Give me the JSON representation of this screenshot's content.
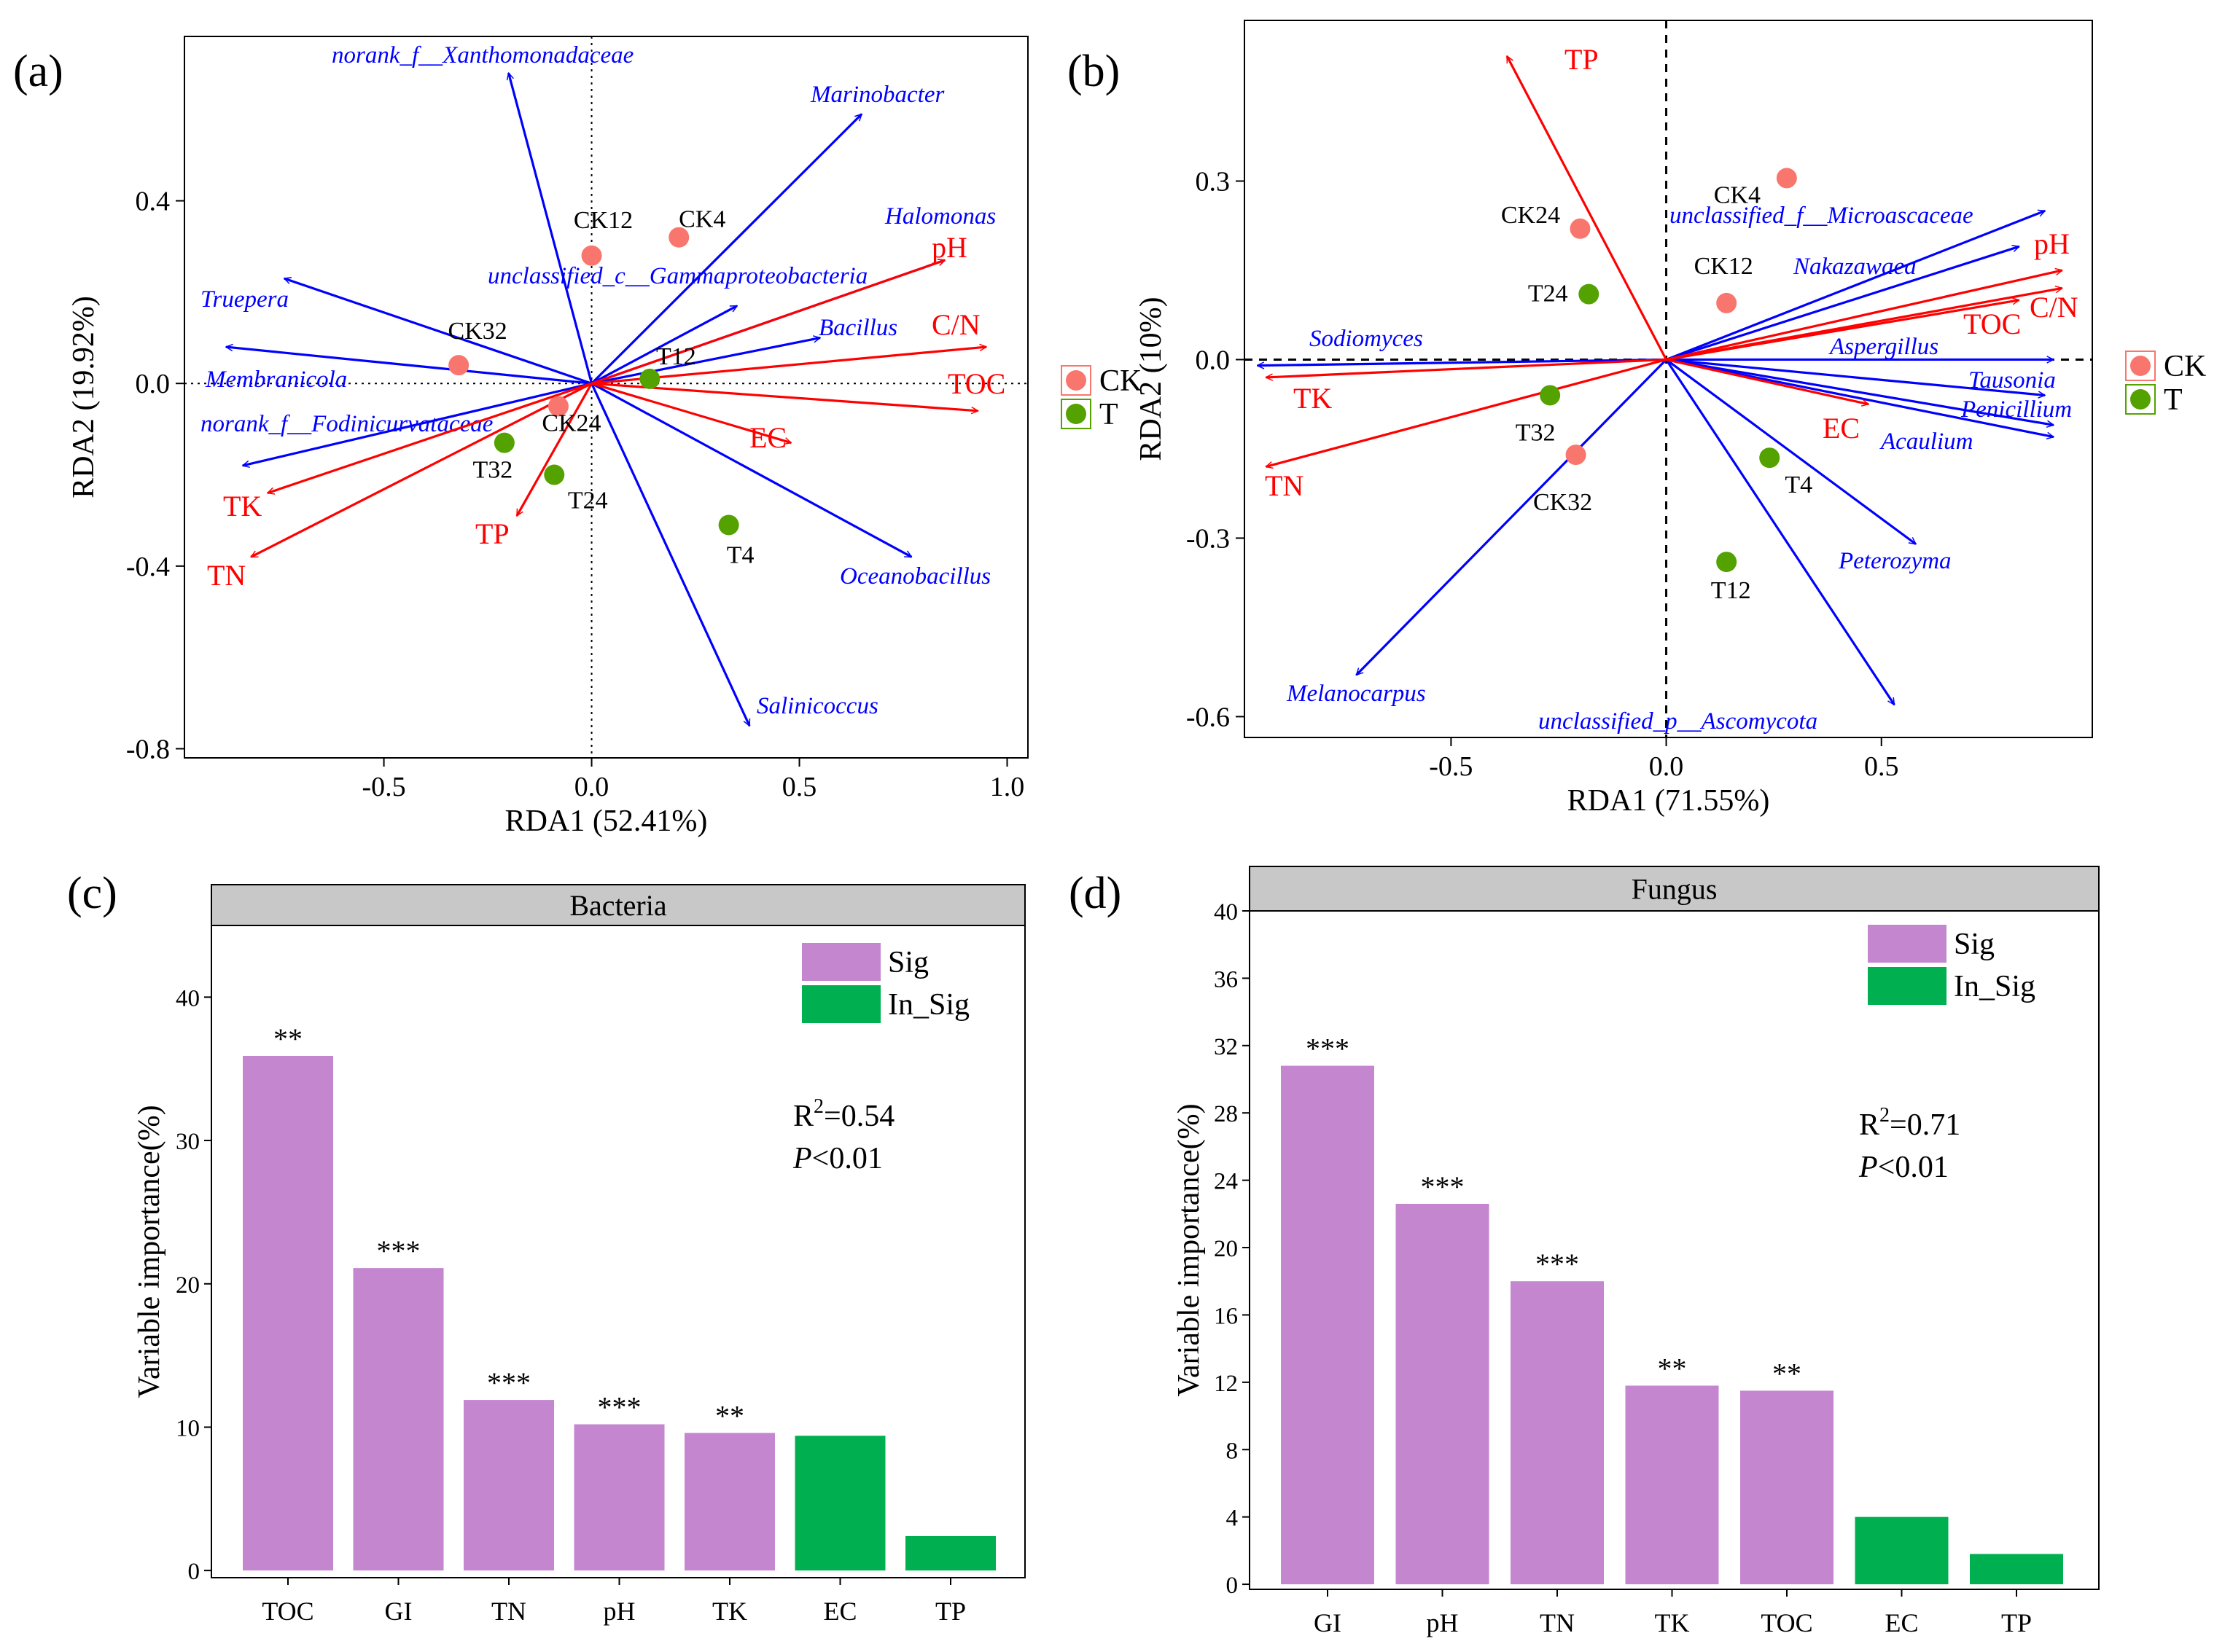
{
  "colors": {
    "env": "#ff0000",
    "species": "#0000ff",
    "ck": "#f8766d",
    "t": "#53a200",
    "sig": "#c486cf",
    "insig": "#00b050",
    "strip": "#c8c8c8"
  },
  "chart_data": [
    {
      "type": "scatter",
      "panel": "(a)",
      "title": "",
      "xlabel": "RDA1 (52.41%)",
      "ylabel": "RDA2 (19.92%)",
      "xlim": [
        -0.98,
        1.05
      ],
      "ylim": [
        -0.82,
        0.76
      ],
      "xticks": [
        -0.5,
        0.0,
        0.5,
        1.0
      ],
      "xtick_labels": [
        "-0.5",
        "0.0",
        "0.5",
        "1.0"
      ],
      "yticks": [
        0.4,
        0.0,
        -0.4,
        -0.8
      ],
      "ytick_labels": [
        "0.4",
        "0.0",
        "-0.4",
        "-0.8"
      ],
      "legend": [
        "CK",
        "T"
      ],
      "points": [
        {
          "label": "CK12",
          "group": "CK",
          "x": 0.0,
          "y": 0.28
        },
        {
          "label": "CK4",
          "group": "CK",
          "x": 0.21,
          "y": 0.32
        },
        {
          "label": "CK32",
          "group": "CK",
          "x": -0.32,
          "y": 0.04
        },
        {
          "label": "CK24",
          "group": "CK",
          "x": -0.08,
          "y": -0.05
        },
        {
          "label": "T12",
          "group": "T",
          "x": 0.14,
          "y": 0.01
        },
        {
          "label": "T32",
          "group": "T",
          "x": -0.21,
          "y": -0.13
        },
        {
          "label": "T24",
          "group": "T",
          "x": -0.09,
          "y": -0.2
        },
        {
          "label": "T4",
          "group": "T",
          "x": 0.33,
          "y": -0.31
        }
      ],
      "env_arrows": [
        {
          "label": "pH",
          "x": 0.85,
          "y": 0.27
        },
        {
          "label": "C/N",
          "x": 0.95,
          "y": 0.08
        },
        {
          "label": "TOC",
          "x": 0.93,
          "y": -0.06
        },
        {
          "label": "EC",
          "x": 0.48,
          "y": -0.13
        },
        {
          "label": "TP",
          "x": -0.18,
          "y": -0.29
        },
        {
          "label": "TK",
          "x": -0.78,
          "y": -0.24
        },
        {
          "label": "TN",
          "x": -0.82,
          "y": -0.38
        }
      ],
      "species_arrows": [
        {
          "label": "norank_f__Xanthomonadaceae",
          "x": -0.2,
          "y": 0.68
        },
        {
          "label": "Marinobacter",
          "x": 0.65,
          "y": 0.59
        },
        {
          "label": "Halomonas",
          "x": 0.85,
          "y": 0.27
        },
        {
          "label": "unclassified_c__Gammaproteobacteria",
          "x": 0.35,
          "y": 0.17
        },
        {
          "label": "Bacillus",
          "x": 0.55,
          "y": 0.1
        },
        {
          "label": "Truepera",
          "x": -0.74,
          "y": 0.23
        },
        {
          "label": "Membranicola",
          "x": -0.88,
          "y": 0.08
        },
        {
          "label": "norank_f__Fodinicurvataceae",
          "x": -0.84,
          "y": -0.18
        },
        {
          "label": "Oceanobacillus",
          "x": 0.77,
          "y": -0.38
        },
        {
          "label": "Salinicoccus",
          "x": 0.38,
          "y": -0.75
        }
      ]
    },
    {
      "type": "scatter",
      "panel": "(b)",
      "title": "",
      "xlabel": "RDA1 (71.55%)",
      "ylabel": "RDA2 (10%)",
      "xlim": [
        -0.98,
        0.99
      ],
      "ylim": [
        -0.635,
        0.57
      ],
      "xticks": [
        -0.5,
        0.0,
        0.5
      ],
      "xtick_labels": [
        "-0.5",
        "0.0",
        "0.5"
      ],
      "yticks": [
        0.3,
        0.0,
        -0.3,
        -0.6
      ],
      "ytick_labels": [
        "0.3",
        "0.0",
        "-0.3",
        "-0.6"
      ],
      "legend": [
        "CK",
        "T"
      ],
      "points": [
        {
          "label": "CK4",
          "group": "CK",
          "x": 0.28,
          "y": 0.305
        },
        {
          "label": "CK24",
          "group": "CK",
          "x": -0.2,
          "y": 0.22
        },
        {
          "label": "CK12",
          "group": "CK",
          "x": 0.14,
          "y": 0.095
        },
        {
          "label": "CK32",
          "group": "CK",
          "x": -0.21,
          "y": -0.16
        },
        {
          "label": "T24",
          "group": "T",
          "x": -0.18,
          "y": 0.11
        },
        {
          "label": "T32",
          "group": "T",
          "x": -0.27,
          "y": -0.06
        },
        {
          "label": "T4",
          "group": "T",
          "x": 0.24,
          "y": -0.165
        },
        {
          "label": "T12",
          "group": "T",
          "x": 0.14,
          "y": -0.34
        }
      ],
      "env_arrows": [
        {
          "label": "TP",
          "x": -0.37,
          "y": 0.51
        },
        {
          "label": "pH",
          "x": 0.92,
          "y": 0.15
        },
        {
          "label": "C/N",
          "x": 0.92,
          "y": 0.12
        },
        {
          "label": "TOC",
          "x": 0.82,
          "y": 0.1
        },
        {
          "label": "EC",
          "x": 0.47,
          "y": -0.075
        },
        {
          "label": "TK",
          "x": -0.93,
          "y": -0.03
        },
        {
          "label": "TN",
          "x": -0.93,
          "y": -0.18
        }
      ],
      "species_arrows": [
        {
          "label": "unclassified_f__Microascaceae",
          "x": 0.88,
          "y": 0.25
        },
        {
          "label": "Nakazawaea",
          "x": 0.82,
          "y": 0.19
        },
        {
          "label": "Aspergillus",
          "x": 0.9,
          "y": 0.0
        },
        {
          "label": "Tausonia",
          "x": 0.88,
          "y": -0.06
        },
        {
          "label": "Penicillium",
          "x": 0.9,
          "y": -0.11
        },
        {
          "label": "Acaulium",
          "x": 0.9,
          "y": -0.13
        },
        {
          "label": "Sodiomyces",
          "x": -0.95,
          "y": -0.01
        },
        {
          "label": "Peterozyma",
          "x": 0.58,
          "y": -0.31
        },
        {
          "label": "unclassified_p__Ascomycota",
          "x": 0.53,
          "y": -0.58
        },
        {
          "label": "Melanocarpus",
          "x": -0.72,
          "y": -0.53
        }
      ]
    },
    {
      "type": "bar",
      "panel": "(c)",
      "title": "Bacteria",
      "xlabel": "",
      "ylabel": "Variable importance(%)",
      "ylim": [
        -0.5,
        45
      ],
      "yticks": [
        0,
        10,
        20,
        30,
        40
      ],
      "ytick_labels": [
        "0",
        "10",
        "20",
        "30",
        "40"
      ],
      "categories": [
        "TOC",
        "GI",
        "TN",
        "pH",
        "TK",
        "EC",
        "TP"
      ],
      "values": [
        35.9,
        21.1,
        11.9,
        10.2,
        9.6,
        9.4,
        2.4
      ],
      "significance": [
        "**",
        "***",
        "***",
        "***",
        "**",
        "",
        ""
      ],
      "groups": [
        "Sig",
        "Sig",
        "Sig",
        "Sig",
        "Sig",
        "In_Sig",
        "In_Sig"
      ],
      "legend": [
        "Sig",
        "In_Sig"
      ],
      "stats": {
        "r2": "R",
        "r2_sup": "2",
        "r2_val": "=0.54",
        "p": "P",
        "p_val": "<0.01"
      }
    },
    {
      "type": "bar",
      "panel": "(d)",
      "title": "Fungus",
      "xlabel": "",
      "ylabel": "Variable importance(%)",
      "ylim": [
        -0.3,
        40
      ],
      "yticks": [
        0,
        4,
        8,
        12,
        16,
        20,
        24,
        28,
        32,
        36,
        40
      ],
      "ytick_labels": [
        "0",
        "4",
        "8",
        "12",
        "16",
        "20",
        "24",
        "28",
        "32",
        "36",
        "40"
      ],
      "categories": [
        "GI",
        "pH",
        "TN",
        "TK",
        "TOC",
        "EC",
        "TP"
      ],
      "values": [
        30.8,
        22.6,
        18.0,
        11.8,
        11.5,
        4.0,
        1.8
      ],
      "significance": [
        "***",
        "***",
        "***",
        "**",
        "**",
        "",
        ""
      ],
      "groups": [
        "Sig",
        "Sig",
        "Sig",
        "Sig",
        "Sig",
        "In_Sig",
        "In_Sig"
      ],
      "legend": [
        "Sig",
        "In_Sig"
      ],
      "stats": {
        "r2": "R",
        "r2_sup": "2",
        "r2_val": "=0.71",
        "p": "P",
        "p_val": "<0.01"
      }
    }
  ]
}
